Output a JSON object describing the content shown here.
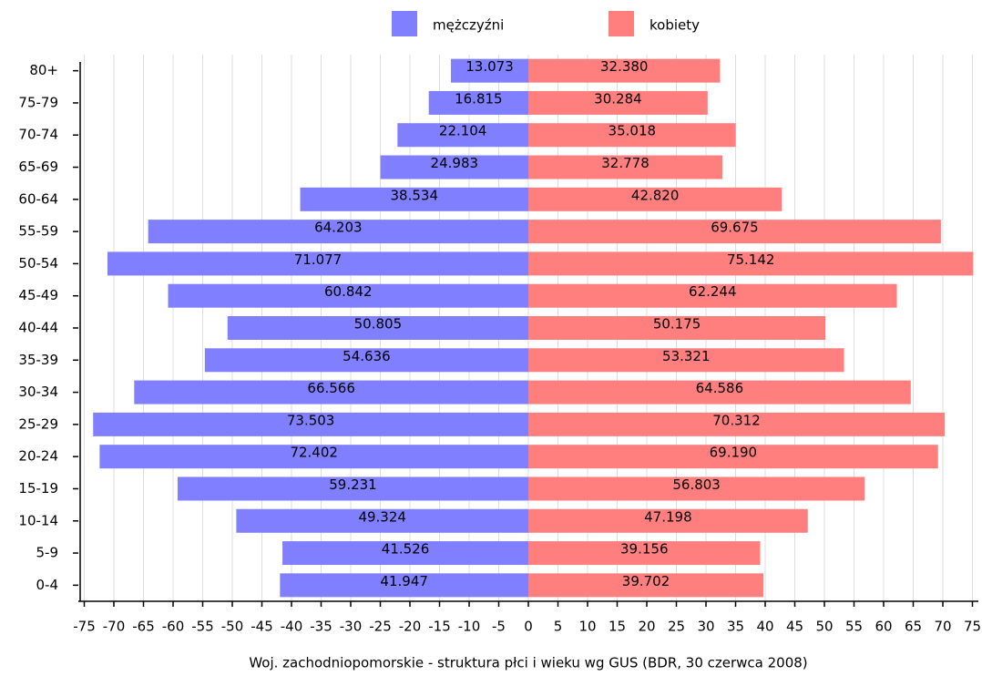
{
  "chart_data": {
    "type": "pyramid",
    "title": "Woj. zachodniopomorskie - struktura płci i wieku wg GUS (BDR, 30 czerwca 2008)",
    "categories": [
      "80+",
      "75-79",
      "70-74",
      "65-69",
      "60-64",
      "55-59",
      "50-54",
      "45-49",
      "40-44",
      "35-39",
      "30-34",
      "25-29",
      "20-24",
      "15-19",
      "10-14",
      "5-9",
      "0-4"
    ],
    "series": [
      {
        "name": "mężczyźni",
        "color": "#7f7fff",
        "values": [
          13.073,
          16.815,
          22.104,
          24.983,
          38.534,
          64.203,
          71.077,
          60.842,
          50.805,
          54.636,
          66.566,
          73.503,
          72.402,
          59.231,
          49.324,
          41.526,
          41.947
        ],
        "value_labels": [
          "13.073",
          "16.815",
          "22.104",
          "24.983",
          "38.534",
          "64.203",
          "71.077",
          "60.842",
          "50.805",
          "54.636",
          "66.566",
          "73.503",
          "72.402",
          "59.231",
          "49.324",
          "41.526",
          "41.947"
        ]
      },
      {
        "name": "kobiety",
        "color": "#ff7f7f",
        "values": [
          32.38,
          30.284,
          35.018,
          32.778,
          42.82,
          69.675,
          75.142,
          62.244,
          50.175,
          53.321,
          64.586,
          70.312,
          69.19,
          56.803,
          47.198,
          39.156,
          39.702
        ],
        "value_labels": [
          "32.380",
          "30.284",
          "35.018",
          "32.778",
          "42.820",
          "69.675",
          "75.142",
          "62.244",
          "50.175",
          "53.321",
          "64.586",
          "70.312",
          "69.190",
          "56.803",
          "47.198",
          "39.156",
          "39.702"
        ]
      }
    ],
    "xlim": [
      -76,
      76
    ],
    "xticks": [
      -75,
      -70,
      -65,
      -60,
      -55,
      -50,
      -45,
      -40,
      -35,
      -30,
      -25,
      -20,
      -15,
      -10,
      -5,
      0,
      5,
      10,
      15,
      20,
      25,
      30,
      35,
      40,
      45,
      50,
      55,
      60,
      65,
      70,
      75
    ],
    "grid": true,
    "legend": "top"
  }
}
